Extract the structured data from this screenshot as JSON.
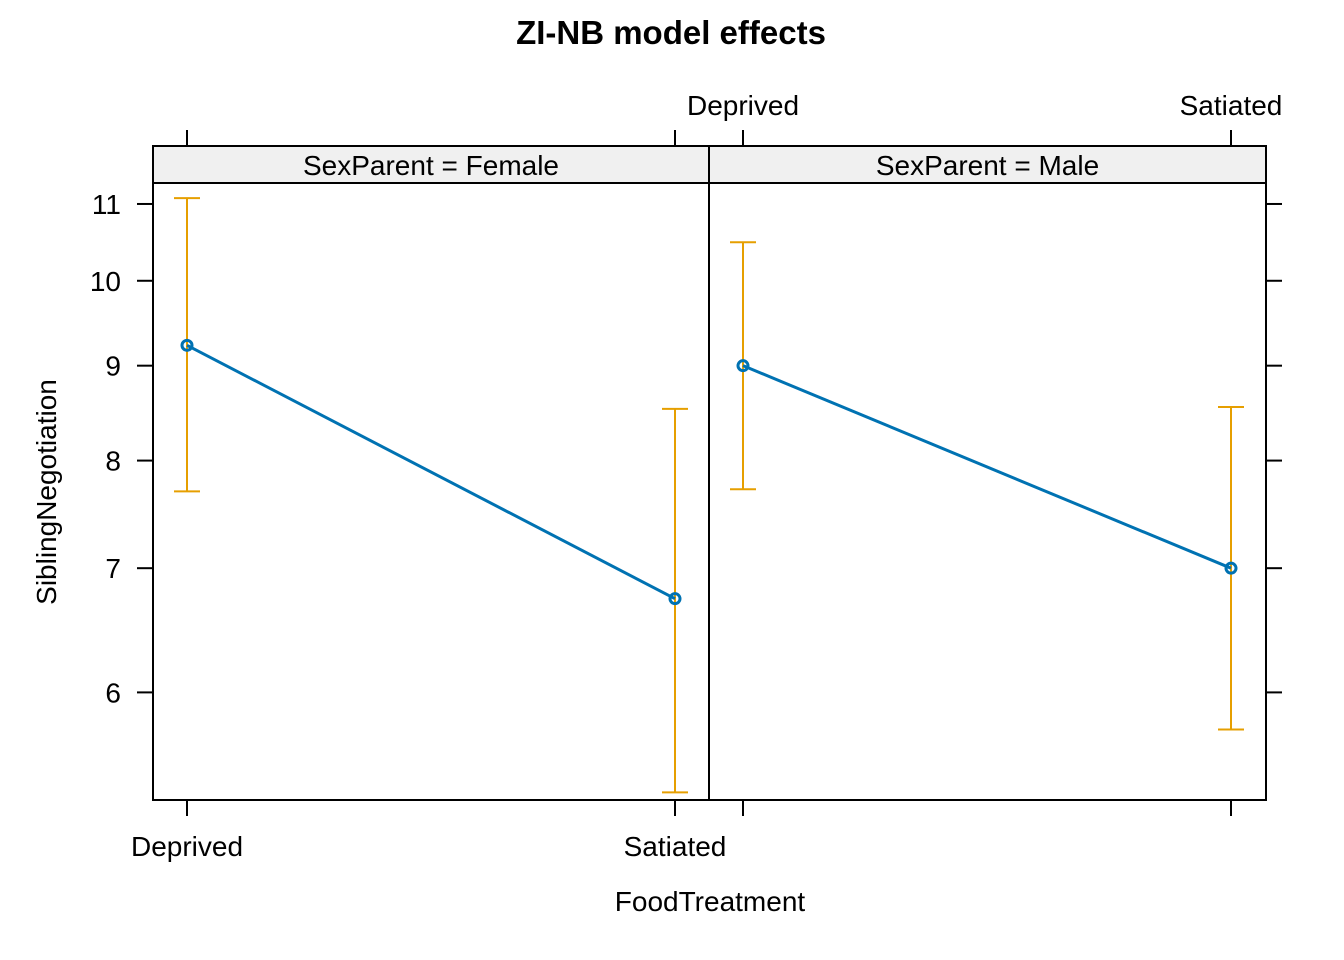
{
  "chart_data": {
    "type": "line",
    "title": "ZI-NB model effects",
    "xlabel": "FoodTreatment",
    "ylabel": "SiblingNegotiation",
    "y_scale": "log",
    "ylim": [
      5.25,
      11.29
    ],
    "yticks": [
      6,
      7,
      8,
      9,
      10,
      11
    ],
    "ytick_labels": [
      "6",
      "7",
      "8",
      "9",
      "10",
      "11"
    ],
    "categories": [
      "Deprived",
      "Satiated"
    ],
    "grid": false,
    "legend": "none",
    "line_color": "#0072B2",
    "errorbar_color": "#E69F00",
    "strip_background": "#F0F0F0",
    "panels": [
      {
        "strip": "SexParent = Female",
        "x_axis_side": "bottom",
        "y_axis_side": "left",
        "fit": [
          9.23,
          6.74
        ],
        "lower": [
          7.7,
          5.3
        ],
        "upper": [
          11.08,
          8.53
        ]
      },
      {
        "strip": "SexParent = Male",
        "x_axis_side": "top",
        "y_axis_side": "right",
        "fit": [
          9.0,
          7.0
        ],
        "lower": [
          7.72,
          5.73
        ],
        "upper": [
          10.49,
          8.55
        ]
      }
    ]
  }
}
